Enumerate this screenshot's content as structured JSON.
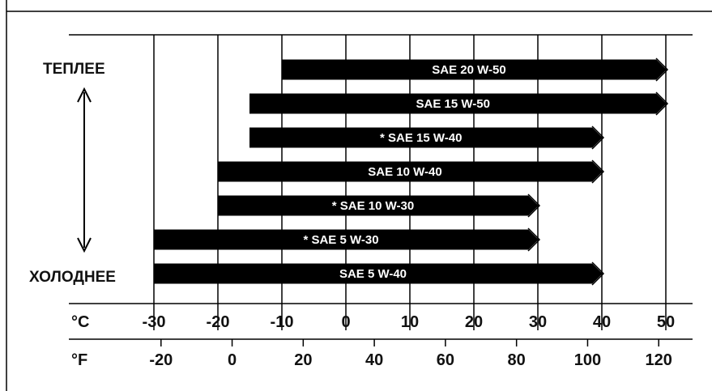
{
  "chart_data": {
    "type": "bar",
    "orientation": "horizontal-range",
    "labels": {
      "warmer": "ТЕПЛЕЕ",
      "colder": "ХОЛОДНЕЕ",
      "celsius_unit": "°C",
      "fahrenheit_unit": "°F"
    },
    "celsius_ticks": [
      -30,
      -20,
      -10,
      0,
      10,
      20,
      30,
      40,
      50
    ],
    "fahrenheit_ticks": [
      -20,
      0,
      20,
      40,
      60,
      80,
      100,
      120
    ],
    "xlim_celsius": [
      -30,
      50
    ],
    "grid": true,
    "series": [
      {
        "name": "SAE 20 W-50",
        "label": "SAE 20 W-50",
        "starred": false,
        "from": -10,
        "to": 50
      },
      {
        "name": "SAE 15 W-50",
        "label": "SAE 15 W-50",
        "starred": false,
        "from": -15,
        "to": 50
      },
      {
        "name": "SAE 15 W-40",
        "label": "* SAE 15 W-40",
        "starred": true,
        "from": -15,
        "to": 40
      },
      {
        "name": "SAE 10 W-40",
        "label": "SAE 10 W-40",
        "starred": false,
        "from": -20,
        "to": 40
      },
      {
        "name": "SAE 10 W-30",
        "label": "* SAE 10 W-30",
        "starred": true,
        "from": -20,
        "to": 30
      },
      {
        "name": "SAE 5 W-30",
        "label": "* SAE 5 W-30",
        "starred": true,
        "from": -30,
        "to": 30
      },
      {
        "name": "SAE 5 W-40",
        "label": "SAE 5 W-40",
        "starred": false,
        "from": -30,
        "to": 40
      }
    ],
    "bar_color": "#000000",
    "arrow_color": "#000000"
  }
}
